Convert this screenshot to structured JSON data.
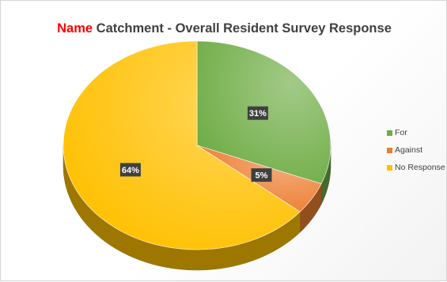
{
  "chart_data": {
    "type": "pie",
    "title_prefix": "Name",
    "title": "Catchment - Overall Resident Survey Response",
    "categories": [
      "For",
      "Against",
      "No Response"
    ],
    "values": [
      31,
      5,
      64
    ],
    "data_labels": [
      "31%",
      "5%",
      "64%"
    ],
    "colors": [
      "#70ad47",
      "#ed7d31",
      "#ffc000"
    ],
    "legend_position": "right",
    "style": "3d"
  }
}
